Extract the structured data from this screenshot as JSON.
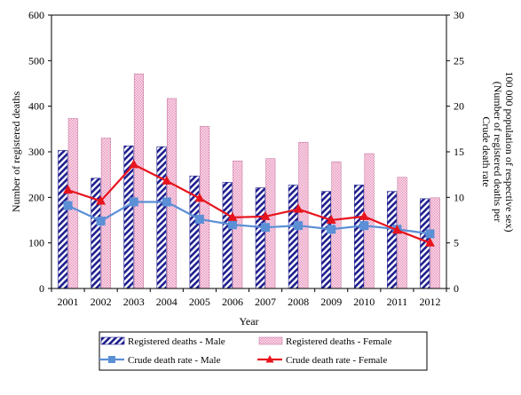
{
  "chart_data": {
    "type": "bar",
    "x": [
      "2001",
      "2002",
      "2003",
      "2004",
      "2005",
      "2006",
      "2007",
      "2008",
      "2009",
      "2010",
      "2011",
      "2012"
    ],
    "xlabel": "Year",
    "ylabel_left": "Number of registered deaths",
    "ylabel_right_lines": [
      "Crude death rate",
      "(Number of registered deaths per",
      "100 000 population of respective sex)"
    ],
    "ylim_left": [
      0,
      600
    ],
    "yticks_left": [
      0,
      100,
      200,
      300,
      400,
      500,
      600
    ],
    "ylim_right": [
      0,
      30
    ],
    "yticks_right": [
      0,
      5,
      10,
      15,
      20,
      25,
      30
    ],
    "grid": false,
    "legend_position": "bottom",
    "series": [
      {
        "name": "Registered deaths - Male",
        "kind": "bar",
        "axis": "left",
        "color": "#1f1f8f",
        "values": [
          303,
          242,
          313,
          311,
          247,
          233,
          221,
          227,
          213,
          227,
          213,
          197
        ]
      },
      {
        "name": "Registered deaths - Female",
        "kind": "bar",
        "axis": "left",
        "color": "#f4b8d4",
        "values": [
          373,
          330,
          471,
          417,
          356,
          280,
          285,
          321,
          278,
          296,
          244,
          199
        ]
      },
      {
        "name": "Crude death rate - Male",
        "kind": "line",
        "axis": "right",
        "color": "#5b8fd6",
        "marker": "square",
        "values": [
          9.1,
          7.4,
          9.5,
          9.5,
          7.6,
          7.0,
          6.7,
          6.9,
          6.5,
          6.9,
          6.5,
          6.0
        ]
      },
      {
        "name": "Crude death rate - Female",
        "kind": "line",
        "axis": "right",
        "color": "#e8141d",
        "marker": "triangle",
        "values": [
          10.8,
          9.6,
          13.6,
          11.8,
          9.9,
          7.8,
          7.9,
          8.7,
          7.5,
          7.9,
          6.4,
          5.0
        ]
      }
    ]
  }
}
